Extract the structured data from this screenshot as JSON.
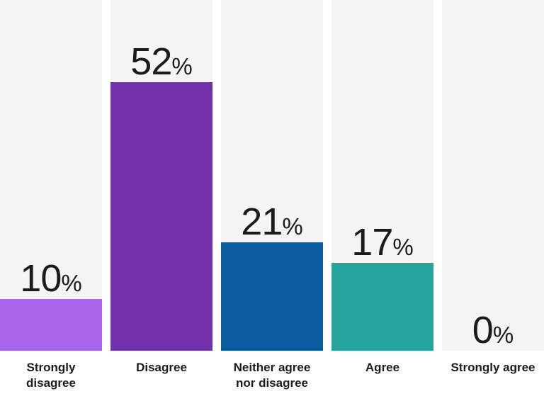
{
  "chart_data": {
    "type": "bar",
    "categories": [
      "Strongly disagree",
      "Disagree",
      "Neither agree nor disagree",
      "Agree",
      "Strongly agree"
    ],
    "values": [
      10,
      52,
      21,
      17,
      0
    ],
    "value_labels": [
      "10",
      "52",
      "21",
      "17",
      "0"
    ],
    "unit": "%",
    "bar_colors": [
      "#a766ec",
      "#7231ac",
      "#0b5c9e",
      "#26a39b",
      null
    ],
    "track_color": "#f5f4f5",
    "background_color": "#ffffff",
    "text_color": "#1b1b1b",
    "ylim": [
      0,
      68
    ],
    "grid": false,
    "legend": false,
    "value_label_position": "above-bar",
    "orientation": "vertical"
  }
}
